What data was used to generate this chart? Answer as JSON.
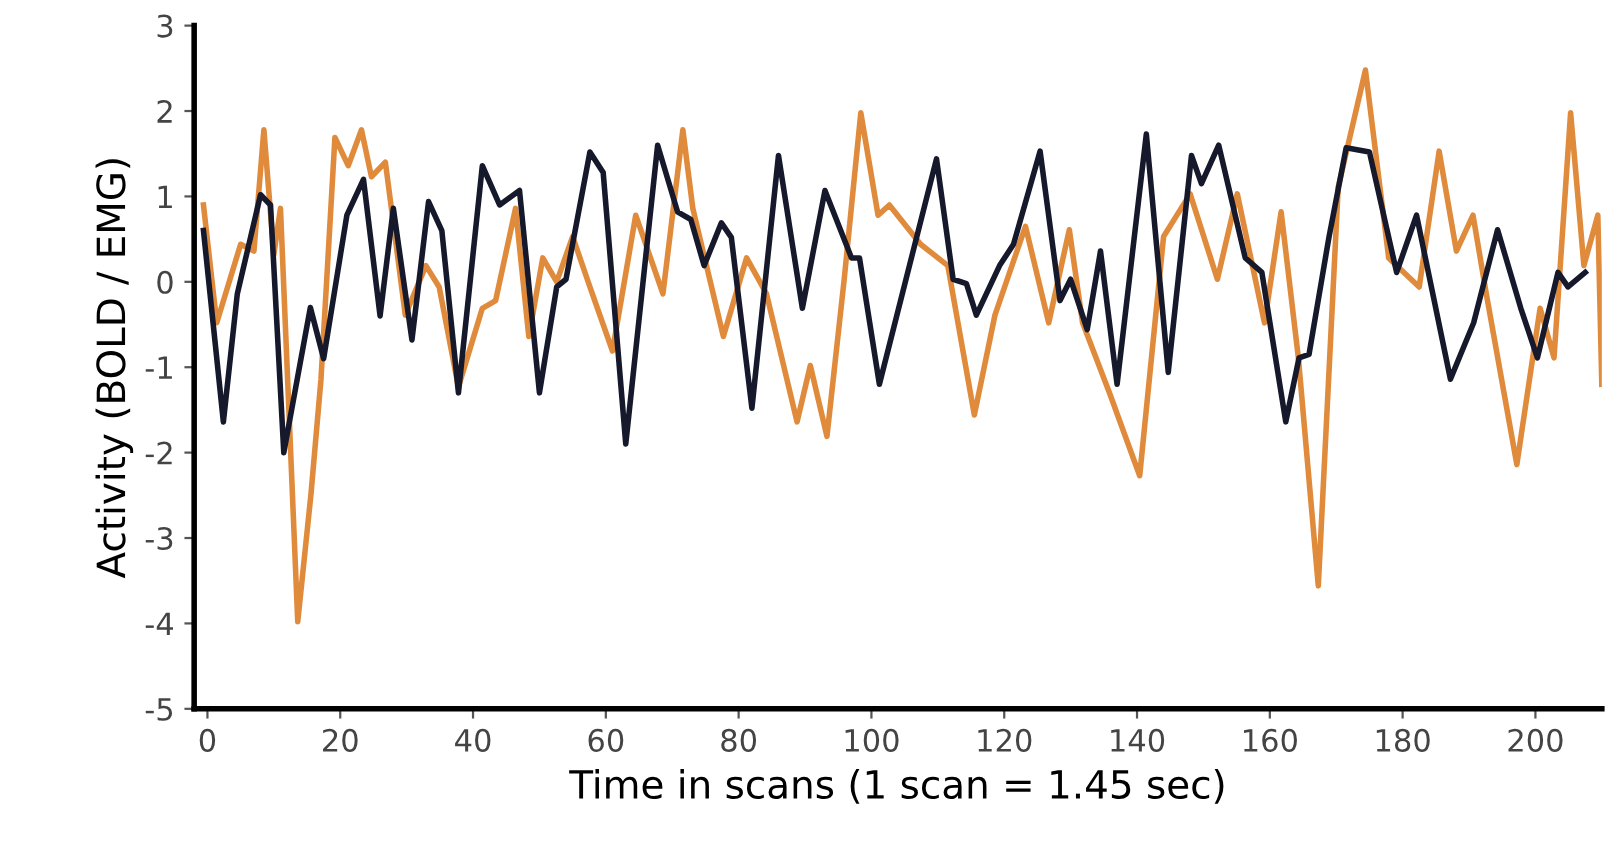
{
  "chart_data": {
    "type": "line",
    "xlabel": "Time in scans (1 scan = 1.45 sec)",
    "ylabel": "Activity (BOLD / EMG)",
    "xlim": [
      -2,
      210
    ],
    "ylim": [
      -5,
      3
    ],
    "xticks": [
      0,
      20,
      40,
      60,
      80,
      100,
      120,
      140,
      160,
      180,
      200
    ],
    "yticks": [
      -5,
      -4,
      -3,
      -2,
      -1,
      0,
      1,
      2,
      3
    ],
    "grid": false,
    "legend": false,
    "marker": "none",
    "line_style": "solid",
    "series": [
      {
        "color": "#e08a3c",
        "x": [
          -0.6,
          1.4,
          5,
          7,
          8.5,
          10,
          11,
          13.6,
          15.6,
          17.1,
          19.2,
          21.2,
          23.2,
          24.7,
          26.8,
          29.8,
          32.9,
          34.9,
          37.8,
          41.4,
          43.4,
          46.4,
          48.4,
          50.5,
          52.6,
          55,
          57.6,
          61,
          64.5,
          68.6,
          71.6,
          73.1,
          77.7,
          81.2,
          84.2,
          88.8,
          90.8,
          93.3,
          95.9,
          98.4,
          101,
          102.7,
          107.4,
          111.5,
          115.5,
          118.6,
          123.2,
          126.7,
          129.8,
          131.8,
          135.9,
          140.4,
          144,
          148,
          152.1,
          155.1,
          159.2,
          161.7,
          164.3,
          167.3,
          170.3,
          174.4,
          177.9,
          182.5,
          185.5,
          188.1,
          190.6,
          192.6,
          197.2,
          200.7,
          202.8,
          205.3,
          207.3,
          209.4,
          210
        ],
        "values": [
          0.9,
          -0.48,
          0.44,
          0.36,
          1.78,
          0.32,
          0.86,
          -3.98,
          -2.48,
          -1.14,
          1.69,
          1.36,
          1.78,
          1.23,
          1.4,
          -0.39,
          0.19,
          -0.06,
          -1.23,
          -0.31,
          -0.22,
          0.86,
          -0.64,
          0.28,
          0,
          0.53,
          -0.06,
          -0.81,
          0.78,
          -0.14,
          1.78,
          0.86,
          -0.64,
          0.28,
          -0.14,
          -1.64,
          -0.98,
          -1.81,
          0.03,
          1.98,
          0.78,
          0.9,
          0.44,
          0.19,
          -1.56,
          -0.39,
          0.65,
          -0.48,
          0.61,
          -0.48,
          -1.31,
          -2.27,
          0.53,
          1.03,
          0.03,
          1.03,
          -0.48,
          0.82,
          -0.89,
          -3.56,
          1.11,
          2.48,
          0.28,
          -0.06,
          1.53,
          0.36,
          0.78,
          -0.14,
          -2.14,
          -0.31,
          -0.89,
          1.98,
          0.19,
          0.78,
          -1.2
        ]
      },
      {
        "color": "#16192b",
        "x": [
          -0.6,
          2.4,
          4.5,
          8,
          9.5,
          11.5,
          15.5,
          17.5,
          21,
          23.5,
          26,
          28,
          30.8,
          33.3,
          35.3,
          37.8,
          41.4,
          44,
          47,
          50,
          52.6,
          54,
          57.6,
          59.6,
          63,
          67.8,
          70.8,
          72.8,
          74.8,
          77.4,
          78.9,
          82,
          86,
          89.6,
          93,
          97,
          98.2,
          101.2,
          109.8,
          112.3,
          114.3,
          115.8,
          119.3,
          121.4,
          125.4,
          128.4,
          130,
          132.5,
          134.5,
          137,
          141.4,
          144.7,
          148.2,
          149.7,
          152.3,
          156.3,
          158.8,
          162.4,
          164.4,
          165.9,
          168.9,
          171.5,
          175,
          179.1,
          182.1,
          187.2,
          190.7,
          194.3,
          197.8,
          200.3,
          203.4,
          204.9,
          207.5
        ],
        "values": [
          0.6,
          -1.64,
          -0.14,
          1.02,
          0.9,
          -2.0,
          -0.3,
          -0.9,
          0.78,
          1.2,
          -0.4,
          0.86,
          -0.68,
          0.94,
          0.6,
          -1.3,
          1.36,
          0.9,
          1.07,
          -1.3,
          -0.06,
          0.03,
          1.52,
          1.28,
          -1.9,
          1.6,
          0.82,
          0.73,
          0.19,
          0.69,
          0.52,
          -1.48,
          1.48,
          -0.31,
          1.07,
          0.28,
          0.28,
          -1.2,
          1.44,
          0.03,
          -0.02,
          -0.39,
          0.19,
          0.44,
          1.53,
          -0.22,
          0.03,
          -0.56,
          0.36,
          -1.2,
          1.73,
          -1.06,
          1.48,
          1.15,
          1.6,
          0.28,
          0.11,
          -1.64,
          -0.89,
          -0.85,
          0.52,
          1.57,
          1.52,
          0.11,
          0.78,
          -1.14,
          -0.48,
          0.61,
          -0.31,
          -0.89,
          0.11,
          -0.06,
          0.11
        ]
      }
    ]
  }
}
